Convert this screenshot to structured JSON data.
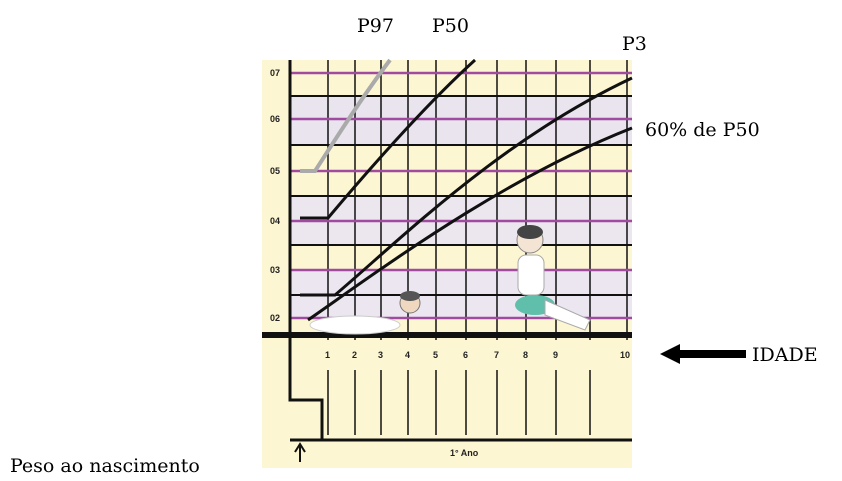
{
  "labels": {
    "p97": "P97",
    "p50": "P50",
    "p3": "P3",
    "p60": "60% de P50",
    "idade": "IDADE",
    "peso": "Peso ao nascimento"
  },
  "y_axis": [
    "07",
    "06",
    "05",
    "04",
    "03",
    "02"
  ],
  "x_axis": [
    "1",
    "2",
    "3",
    "4",
    "5",
    "6",
    "7",
    "8",
    "9",
    "10"
  ],
  "bottom_label": "1° Ano"
}
